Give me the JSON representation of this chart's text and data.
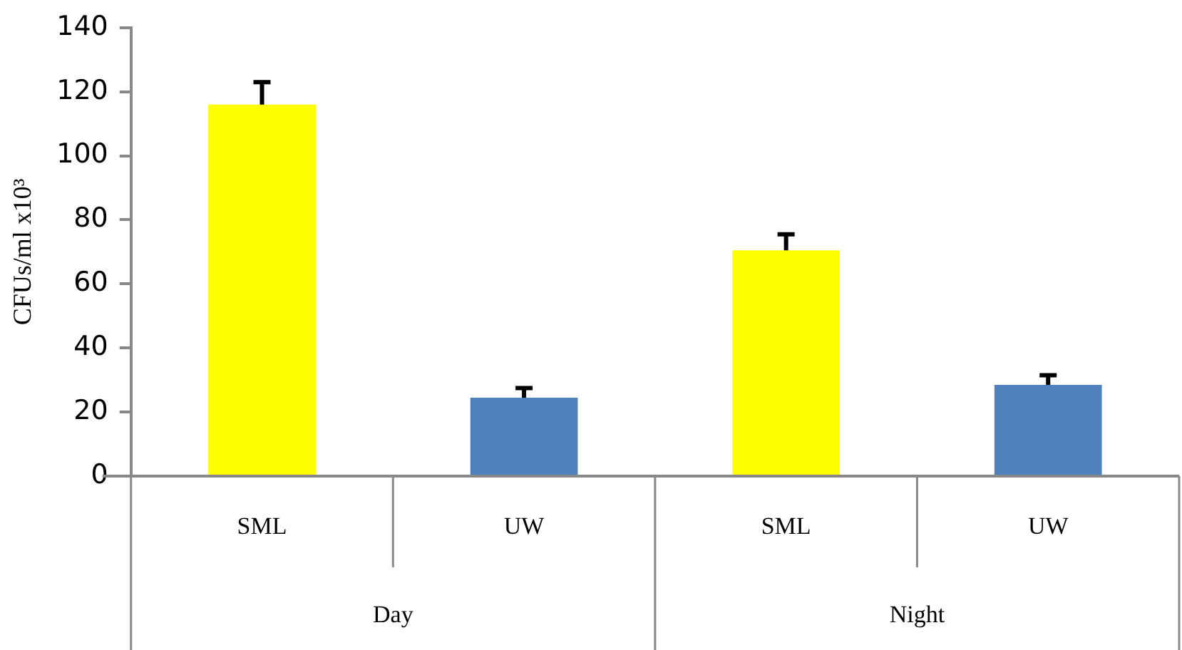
{
  "chart_data": {
    "type": "bar",
    "ylabel": "CFUs/ml x10³",
    "categories": [
      "SML",
      "UW",
      "SML",
      "UW"
    ],
    "values": [
      116,
      24.5,
      70.5,
      28.5
    ],
    "colors": [
      "#ffff00",
      "#4f81bd",
      "#ffff00",
      "#4f81bd"
    ],
    "errors": [
      [
        116,
        123
      ],
      [
        24.5,
        27.5
      ],
      [
        70.5,
        75.5
      ],
      [
        28.5,
        31.5
      ]
    ],
    "annotations": [
      "Day",
      "Night"
    ],
    "ylim": [
      0,
      140
    ],
    "yticks": [
      0,
      20,
      40,
      60,
      80,
      100,
      120,
      140
    ],
    "grid": false,
    "legend": false
  }
}
